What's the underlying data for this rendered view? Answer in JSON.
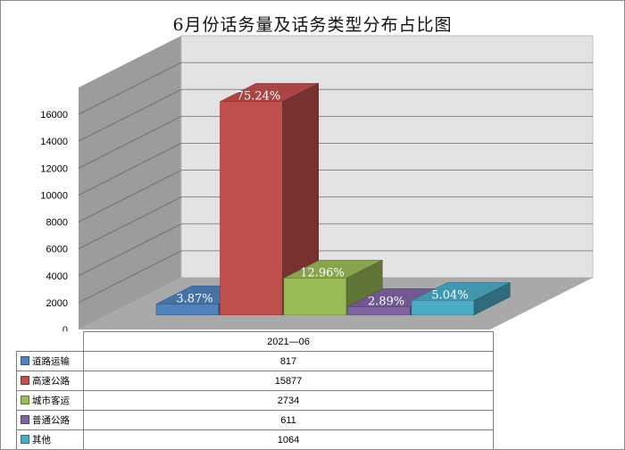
{
  "chart_data": {
    "type": "bar",
    "title": "6月份话务量及话务类型分布占比图",
    "x": [
      "2021—06"
    ],
    "series": [
      {
        "name": "道路运输",
        "values": [
          817
        ],
        "label": "3.87%",
        "color": "#4f81bd"
      },
      {
        "name": "高速公路",
        "values": [
          15877
        ],
        "label": "75.24%",
        "color": "#c0504d"
      },
      {
        "name": "城市客运",
        "values": [
          2734
        ],
        "label": "12.96%",
        "color": "#9bbb59"
      },
      {
        "name": "普通公路",
        "values": [
          611
        ],
        "label": "2.89%",
        "color": "#8064a2"
      },
      {
        "name": "其他",
        "values": [
          1064
        ],
        "label": "5.04%",
        "color": "#4bacc6"
      }
    ],
    "yticks": [
      "0",
      "2000",
      "4000",
      "6000",
      "8000",
      "10000",
      "12000",
      "14000",
      "16000"
    ],
    "ylim": [
      0,
      18000
    ],
    "grid": true,
    "legend": "data-table"
  }
}
